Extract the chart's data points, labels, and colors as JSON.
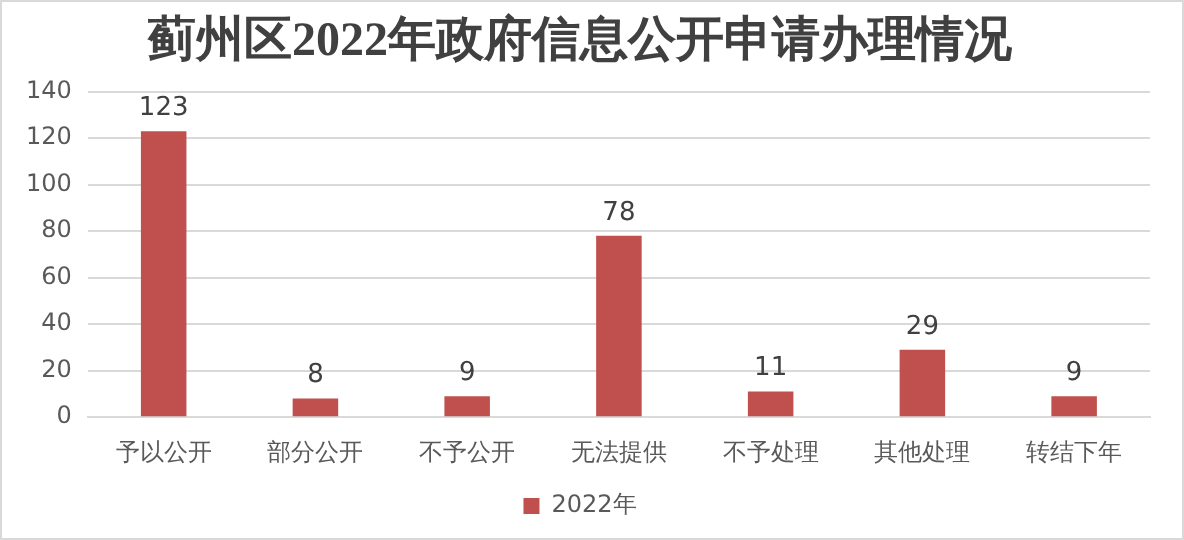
{
  "chart_data": {
    "type": "bar",
    "title": "蓟州区2022年政府信息公开申请办理情况",
    "categories": [
      "予以公开",
      "部分公开",
      "不予公开",
      "无法提供",
      "不予处理",
      "其他处理",
      "转结下年"
    ],
    "series": [
      {
        "name": "2022年",
        "color": "#c0504d",
        "values": [
          123,
          8,
          9,
          78,
          11,
          29,
          9
        ]
      }
    ],
    "ylim": [
      0,
      140
    ],
    "yticks": [
      0,
      20,
      40,
      60,
      80,
      100,
      120,
      140
    ],
    "grid": "y",
    "legend": "bottom",
    "data_labels": true
  }
}
